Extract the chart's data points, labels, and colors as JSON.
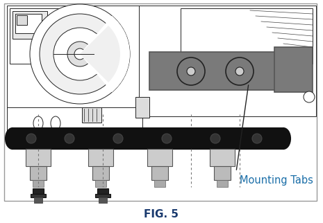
{
  "figure_caption": "FIG. 5",
  "label_text": "Mounting Tabs",
  "label_color": "#1a6ea8",
  "caption_color": "#1a3a6e",
  "background_color": "#ffffff",
  "fig_width": 4.65,
  "fig_height": 3.22,
  "dpi": 100,
  "caption_fontsize": 11,
  "label_fontsize": 10.5,
  "image_border_color": "#999999",
  "arrow_color": "#222222",
  "dashed_line_color": "#777777",
  "gray_box_color": "#7a7a7a",
  "dark_color": "#111111",
  "line_color": "#222222",
  "light_gray": "#cccccc",
  "mid_gray": "#999999"
}
